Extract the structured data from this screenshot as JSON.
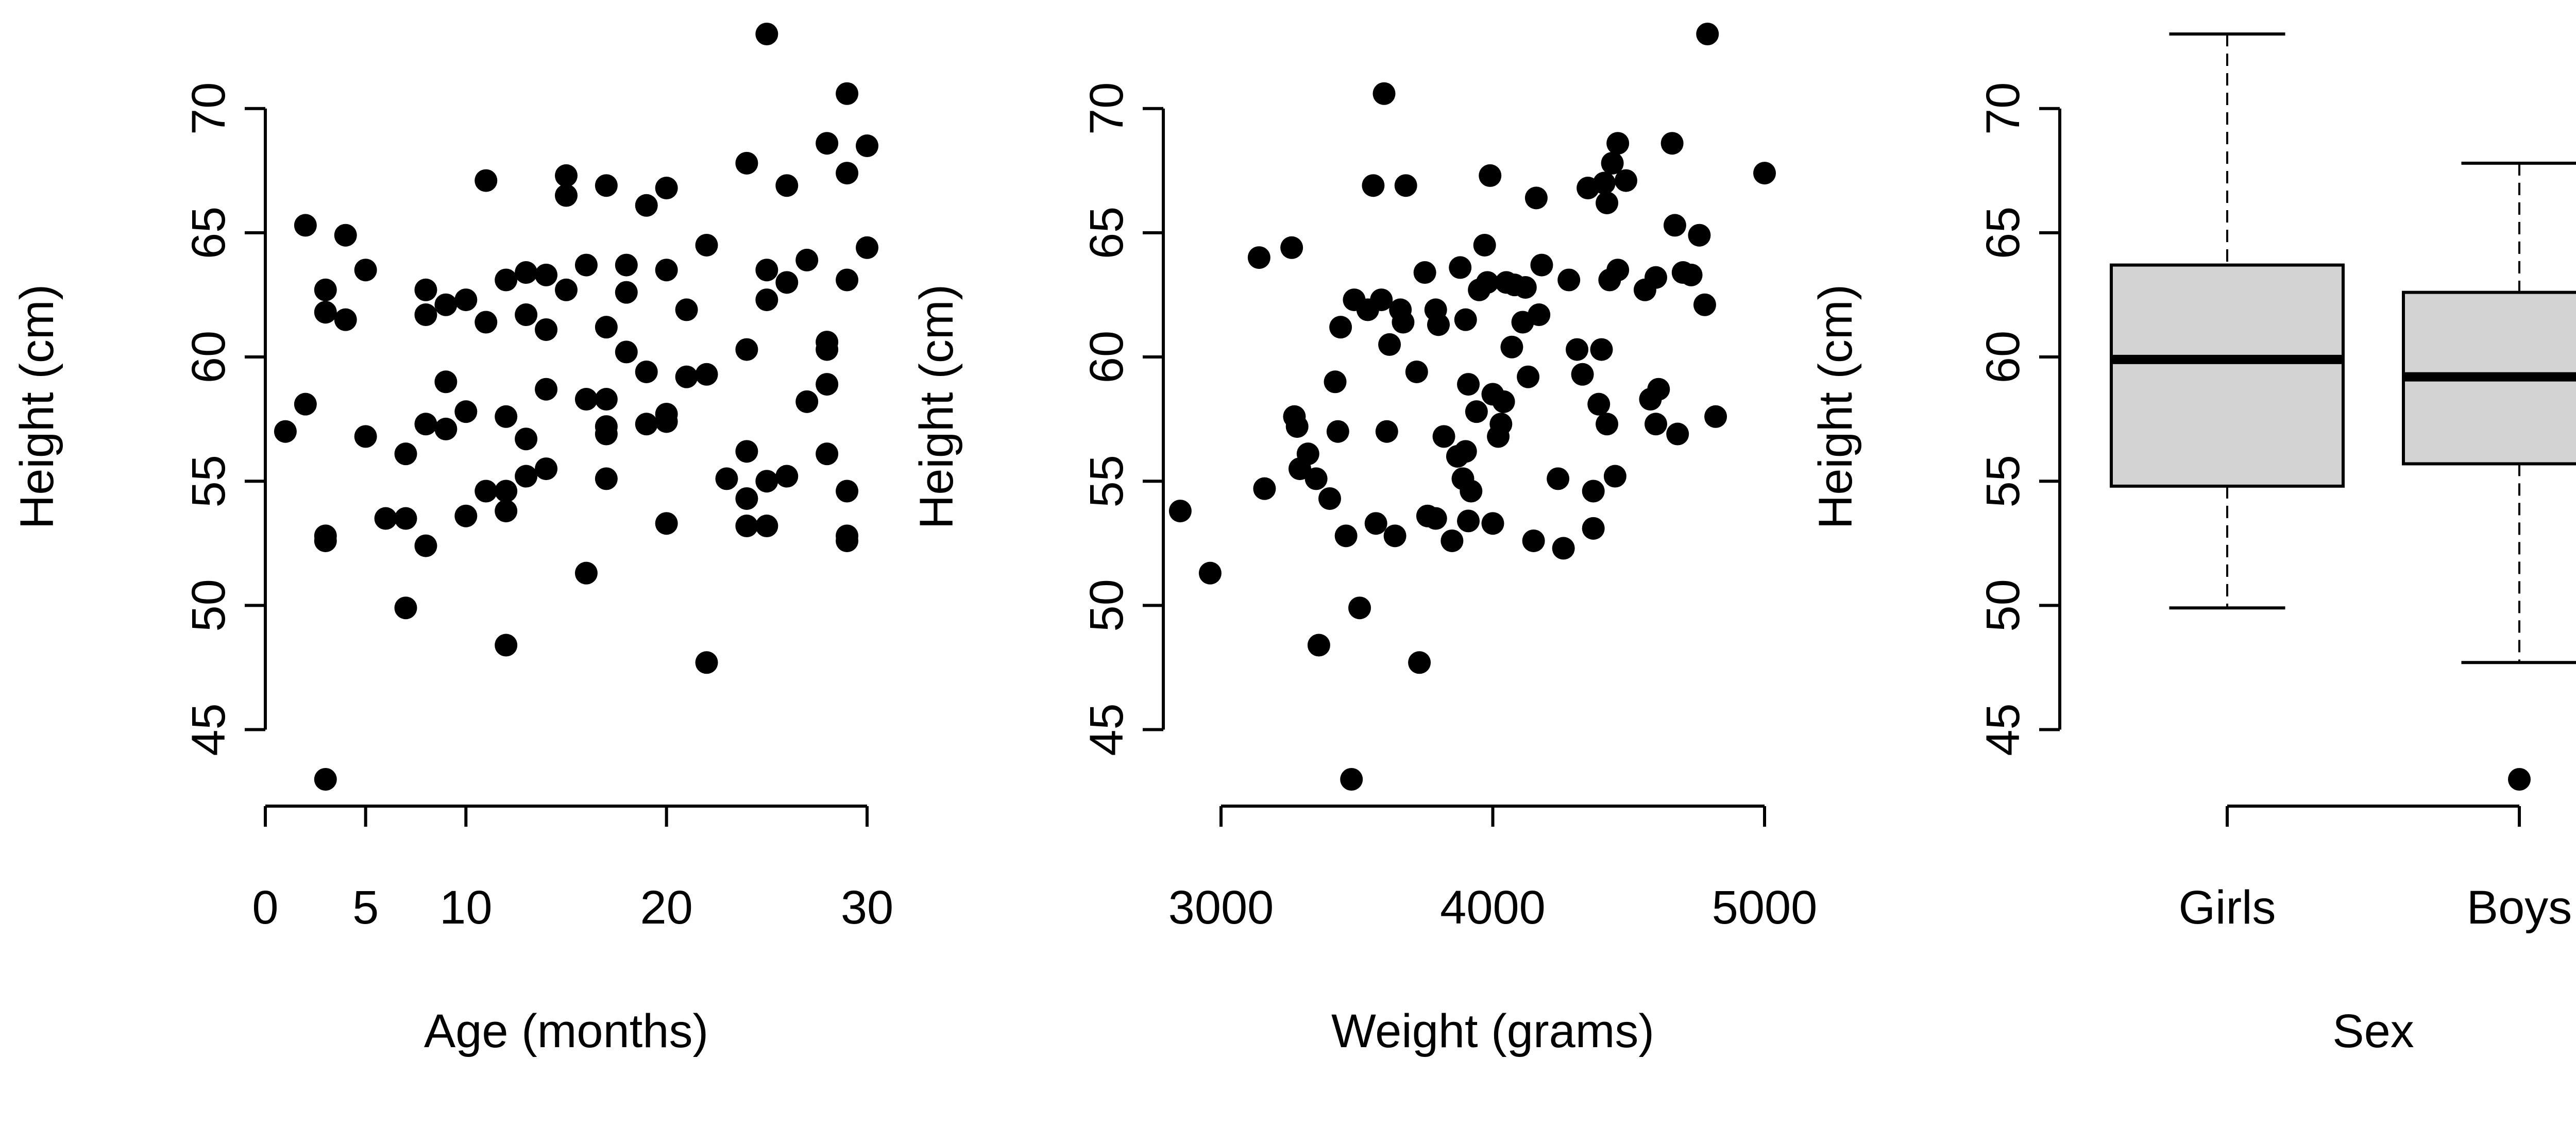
{
  "chart_data": [
    {
      "type": "scatter",
      "xlabel": "Age (months)",
      "ylabel": "Height (cm)",
      "xlim": [
        0,
        30
      ],
      "ylim": [
        43,
        73
      ],
      "x_ticks": [
        0,
        5,
        10,
        20,
        30
      ],
      "x_tick_labels": [
        "0",
        "5",
        "10",
        "20",
        "30"
      ],
      "y_ticks": [
        45,
        50,
        55,
        60,
        65,
        70
      ],
      "y_tick_labels": [
        "45",
        "50",
        "55",
        "60",
        "65",
        "70"
      ],
      "grid": false,
      "points": [
        [
          1,
          57.0
        ],
        [
          2,
          58.1
        ],
        [
          2,
          65.3
        ],
        [
          3,
          62.7
        ],
        [
          3,
          61.8
        ],
        [
          3,
          52.8
        ],
        [
          3,
          52.6
        ],
        [
          3,
          43.0
        ],
        [
          4,
          64.9
        ],
        [
          4,
          61.5
        ],
        [
          5,
          63.5
        ],
        [
          5,
          56.8
        ],
        [
          6,
          53.5
        ],
        [
          7,
          56.1
        ],
        [
          7,
          53.5
        ],
        [
          7,
          49.9
        ],
        [
          8,
          62.7
        ],
        [
          8,
          61.7
        ],
        [
          8,
          57.3
        ],
        [
          8,
          52.4
        ],
        [
          9,
          62.1
        ],
        [
          9,
          59.0
        ],
        [
          9,
          57.1
        ],
        [
          10,
          62.3
        ],
        [
          10,
          57.8
        ],
        [
          10,
          53.6
        ],
        [
          11,
          67.1
        ],
        [
          11,
          61.4
        ],
        [
          11,
          54.6
        ],
        [
          12,
          63.1
        ],
        [
          12,
          57.6
        ],
        [
          12,
          54.6
        ],
        [
          12,
          53.8
        ],
        [
          12,
          48.4
        ],
        [
          13,
          63.4
        ],
        [
          13,
          61.7
        ],
        [
          13,
          56.7
        ],
        [
          13,
          55.2
        ],
        [
          14,
          63.3
        ],
        [
          14,
          61.1
        ],
        [
          14,
          58.7
        ],
        [
          14,
          55.5
        ],
        [
          15,
          67.3
        ],
        [
          15,
          66.5
        ],
        [
          15,
          62.7
        ],
        [
          16,
          63.7
        ],
        [
          16,
          58.3
        ],
        [
          16,
          51.3
        ],
        [
          17,
          66.9
        ],
        [
          17,
          61.2
        ],
        [
          17,
          58.3
        ],
        [
          17,
          57.2
        ],
        [
          17,
          56.9
        ],
        [
          17,
          55.1
        ],
        [
          18,
          63.7
        ],
        [
          18,
          62.6
        ],
        [
          18,
          60.2
        ],
        [
          19,
          66.1
        ],
        [
          19,
          59.4
        ],
        [
          19,
          57.3
        ],
        [
          20,
          66.8
        ],
        [
          20,
          63.5
        ],
        [
          20,
          57.7
        ],
        [
          20,
          57.4
        ],
        [
          20,
          53.3
        ],
        [
          21,
          61.9
        ],
        [
          21,
          59.2
        ],
        [
          22,
          64.5
        ],
        [
          22,
          59.3
        ],
        [
          22,
          47.7
        ],
        [
          23,
          55.1
        ],
        [
          24,
          67.8
        ],
        [
          24,
          60.3
        ],
        [
          24,
          56.2
        ],
        [
          24,
          54.3
        ],
        [
          24,
          53.2
        ],
        [
          25,
          73.0
        ],
        [
          25,
          63.5
        ],
        [
          25,
          62.3
        ],
        [
          25,
          55.0
        ],
        [
          25,
          53.2
        ],
        [
          26,
          66.9
        ],
        [
          26,
          63.0
        ],
        [
          26,
          55.2
        ],
        [
          27,
          63.9
        ],
        [
          27,
          58.2
        ],
        [
          28,
          68.6
        ],
        [
          28,
          60.6
        ],
        [
          28,
          60.3
        ],
        [
          28,
          58.9
        ],
        [
          28,
          56.1
        ],
        [
          29,
          70.6
        ],
        [
          29,
          67.4
        ],
        [
          29,
          63.1
        ],
        [
          29,
          54.6
        ],
        [
          29,
          52.8
        ],
        [
          29,
          52.6
        ],
        [
          30,
          68.5
        ],
        [
          30,
          64.4
        ]
      ]
    },
    {
      "type": "scatter",
      "xlabel": "Weight (grams)",
      "ylabel": "Height (cm)",
      "xlim": [
        2850,
        5000
      ],
      "ylim": [
        43,
        73
      ],
      "x_ticks": [
        3000,
        4000,
        5000
      ],
      "x_tick_labels": [
        "3000",
        "4000",
        "5000"
      ],
      "y_ticks": [
        45,
        50,
        55,
        60,
        65,
        70
      ],
      "y_tick_labels": [
        "45",
        "50",
        "55",
        "60",
        "65",
        "70"
      ],
      "grid": false,
      "points": [
        [
          2850,
          53.8
        ],
        [
          2960,
          51.3
        ],
        [
          3140,
          64.0
        ],
        [
          3160,
          54.7
        ],
        [
          3260,
          64.4
        ],
        [
          3270,
          57.6
        ],
        [
          3280,
          57.2
        ],
        [
          3290,
          55.5
        ],
        [
          3320,
          56.1
        ],
        [
          3350,
          55.1
        ],
        [
          3360,
          48.4
        ],
        [
          3400,
          54.3
        ],
        [
          3420,
          59.0
        ],
        [
          3430,
          57.0
        ],
        [
          3440,
          61.2
        ],
        [
          3460,
          52.8
        ],
        [
          3480,
          43.0
        ],
        [
          3490,
          62.3
        ],
        [
          3510,
          49.9
        ],
        [
          3540,
          61.9
        ],
        [
          3560,
          66.9
        ],
        [
          3570,
          53.3
        ],
        [
          3590,
          62.3
        ],
        [
          3600,
          70.6
        ],
        [
          3610,
          57.0
        ],
        [
          3620,
          60.5
        ],
        [
          3640,
          52.8
        ],
        [
          3660,
          61.9
        ],
        [
          3670,
          61.4
        ],
        [
          3680,
          66.9
        ],
        [
          3720,
          59.4
        ],
        [
          3730,
          47.7
        ],
        [
          3750,
          63.4
        ],
        [
          3760,
          53.6
        ],
        [
          3790,
          53.5
        ],
        [
          3790,
          61.9
        ],
        [
          3800,
          61.3
        ],
        [
          3820,
          56.8
        ],
        [
          3850,
          52.6
        ],
        [
          3870,
          56.0
        ],
        [
          3880,
          63.6
        ],
        [
          3890,
          55.1
        ],
        [
          3900,
          56.2
        ],
        [
          3900,
          61.5
        ],
        [
          3910,
          58.9
        ],
        [
          3910,
          53.4
        ],
        [
          3920,
          54.6
        ],
        [
          3940,
          57.8
        ],
        [
          3950,
          62.7
        ],
        [
          3970,
          64.5
        ],
        [
          3980,
          63.0
        ],
        [
          3990,
          67.3
        ],
        [
          4000,
          53.3
        ],
        [
          4000,
          58.5
        ],
        [
          4020,
          56.8
        ],
        [
          4030,
          57.3
        ],
        [
          4040,
          58.2
        ],
        [
          4050,
          63.0
        ],
        [
          4070,
          60.4
        ],
        [
          4080,
          62.9
        ],
        [
          4110,
          61.4
        ],
        [
          4120,
          62.8
        ],
        [
          4130,
          59.2
        ],
        [
          4150,
          52.6
        ],
        [
          4160,
          66.4
        ],
        [
          4170,
          61.7
        ],
        [
          4180,
          63.7
        ],
        [
          4240,
          55.1
        ],
        [
          4260,
          52.3
        ],
        [
          4280,
          63.1
        ],
        [
          4310,
          60.3
        ],
        [
          4330,
          59.3
        ],
        [
          4350,
          66.8
        ],
        [
          4370,
          54.6
        ],
        [
          4370,
          53.1
        ],
        [
          4390,
          58.1
        ],
        [
          4400,
          60.3
        ],
        [
          4410,
          67.0
        ],
        [
          4420,
          66.2
        ],
        [
          4420,
          57.3
        ],
        [
          4430,
          63.1
        ],
        [
          4440,
          67.8
        ],
        [
          4450,
          55.2
        ],
        [
          4460,
          68.6
        ],
        [
          4460,
          63.5
        ],
        [
          4490,
          67.1
        ],
        [
          4560,
          62.7
        ],
        [
          4580,
          58.3
        ],
        [
          4600,
          63.2
        ],
        [
          4600,
          57.3
        ],
        [
          4610,
          58.7
        ],
        [
          4660,
          68.6
        ],
        [
          4670,
          65.3
        ],
        [
          4680,
          56.9
        ],
        [
          4700,
          63.4
        ],
        [
          4730,
          63.3
        ],
        [
          4760,
          64.9
        ],
        [
          4780,
          62.1
        ],
        [
          4790,
          73.0
        ],
        [
          4820,
          57.6
        ],
        [
          5000,
          67.4
        ]
      ]
    },
    {
      "type": "box",
      "xlabel": "Sex",
      "ylabel": "Height (cm)",
      "ylim": [
        43,
        73
      ],
      "categories": [
        "Girls",
        "Boys"
      ],
      "y_ticks": [
        45,
        50,
        55,
        60,
        65,
        70
      ],
      "y_tick_labels": [
        "45",
        "50",
        "55",
        "60",
        "65",
        "70"
      ],
      "boxes": [
        {
          "name": "Girls",
          "min": 49.9,
          "q1": 54.8,
          "median": 59.9,
          "q3": 63.7,
          "max": 73.0,
          "outliers": []
        },
        {
          "name": "Boys",
          "min": 47.7,
          "q1": 55.7,
          "median": 59.2,
          "q3": 62.6,
          "max": 67.8,
          "outliers": [
            43.0
          ]
        }
      ],
      "box_fill": "#d3d3d3",
      "grid": false
    }
  ]
}
